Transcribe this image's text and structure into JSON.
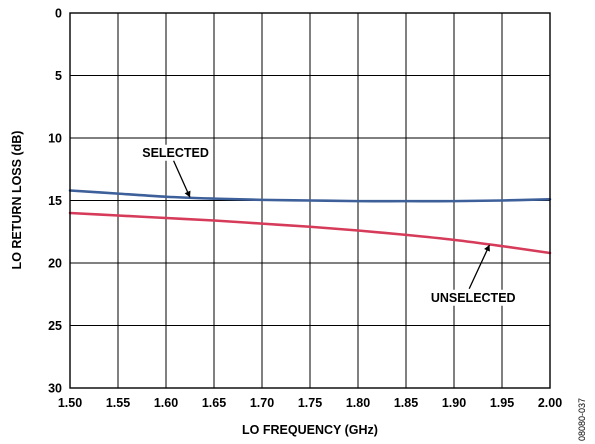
{
  "chart_data": {
    "type": "line",
    "xlabel": "LO FREQUENCY (GHz)",
    "ylabel": "LO RETURN LOSS (dB)",
    "xlim": [
      1.5,
      2.0
    ],
    "ylim": [
      0,
      30
    ],
    "y_inverted": true,
    "x_ticks": [
      "1.50",
      "1.55",
      "1.60",
      "1.65",
      "1.70",
      "1.75",
      "1.80",
      "1.85",
      "1.90",
      "1.95",
      "2.00"
    ],
    "y_ticks": [
      "0",
      "5",
      "10",
      "15",
      "20",
      "25",
      "30"
    ],
    "grid": true,
    "series": [
      {
        "name": "SELECTED",
        "color": "#3d5f9a",
        "x": [
          1.5,
          1.55,
          1.6,
          1.65,
          1.7,
          1.75,
          1.8,
          1.85,
          1.9,
          1.95,
          2.0
        ],
        "y": [
          14.2,
          14.45,
          14.7,
          14.85,
          14.95,
          15.0,
          15.05,
          15.05,
          15.05,
          15.0,
          14.9
        ]
      },
      {
        "name": "UNSELECTED",
        "color": "#d63b5a",
        "x": [
          1.5,
          1.55,
          1.6,
          1.65,
          1.7,
          1.75,
          1.8,
          1.85,
          1.9,
          1.95,
          2.0
        ],
        "y": [
          16.0,
          16.2,
          16.4,
          16.6,
          16.85,
          17.1,
          17.4,
          17.75,
          18.15,
          18.65,
          19.2
        ]
      }
    ],
    "annotations": [
      {
        "text": "SELECTED",
        "series": "SELECTED",
        "label_anchor": [
          1.61,
          11.5
        ],
        "arrow_to": [
          1.625,
          14.75
        ]
      },
      {
        "text": "UNSELECTED",
        "series": "UNSELECTED",
        "label_anchor": [
          1.92,
          23.1
        ],
        "arrow_to": [
          1.937,
          18.55
        ]
      }
    ],
    "figure_id": "08080-037"
  }
}
